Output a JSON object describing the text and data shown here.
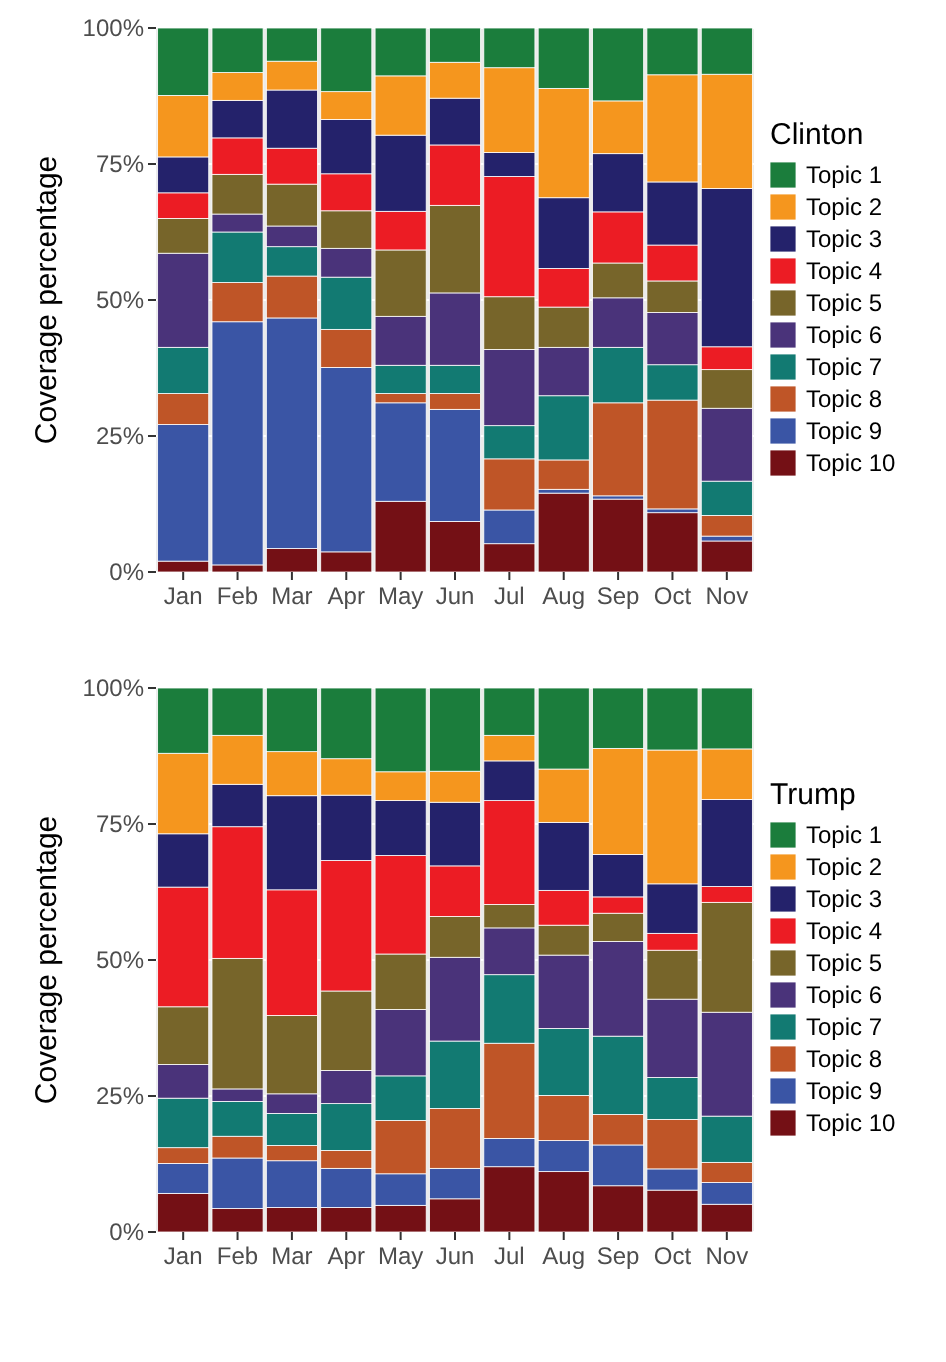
{
  "chart_data": [
    {
      "type": "bar",
      "stacked": true,
      "ylabel": "Coverage percentage",
      "legend_title": "Clinton",
      "legend": "right",
      "grid": true,
      "categories": [
        "Jan",
        "Feb",
        "Mar",
        "Apr",
        "May",
        "Jun",
        "Jul",
        "Aug",
        "Sep",
        "Oct",
        "Nov"
      ],
      "ylim": [
        0,
        100
      ],
      "yticks": [
        {
          "value": 0,
          "label": "0%"
        },
        {
          "value": 25,
          "label": "25%"
        },
        {
          "value": 50,
          "label": "50%"
        },
        {
          "value": 75,
          "label": "75%"
        },
        {
          "value": 100,
          "label": "100%"
        }
      ],
      "series": [
        {
          "name": "Topic 10",
          "color": "#741015",
          "values": [
            2.0,
            1.3,
            4.3,
            3.7,
            13.0,
            9.3,
            5.2,
            14.5,
            13.4,
            10.9,
            5.7
          ]
        },
        {
          "name": "Topic 9",
          "color": "#3a55a5",
          "values": [
            25.1,
            44.7,
            42.4,
            33.9,
            18.1,
            20.6,
            6.2,
            0.7,
            0.6,
            0.7,
            0.9
          ]
        },
        {
          "name": "Topic 8",
          "color": "#bf5527",
          "values": [
            5.7,
            7.2,
            7.7,
            7.0,
            1.7,
            2.9,
            9.4,
            5.4,
            17.1,
            20.0,
            3.8
          ]
        },
        {
          "name": "Topic 7",
          "color": "#127a72",
          "values": [
            8.5,
            9.3,
            5.4,
            9.6,
            5.2,
            5.2,
            6.1,
            11.8,
            10.2,
            6.5,
            6.3
          ]
        },
        {
          "name": "Topic 6",
          "color": "#4a337a",
          "values": [
            17.3,
            3.3,
            3.8,
            5.3,
            9.0,
            13.3,
            14.0,
            8.9,
            9.1,
            9.6,
            13.4
          ]
        },
        {
          "name": "Topic 5",
          "color": "#77652a",
          "values": [
            6.4,
            7.3,
            7.7,
            6.9,
            12.2,
            16.1,
            9.7,
            7.4,
            6.4,
            5.8,
            7.1
          ]
        },
        {
          "name": "Topic 4",
          "color": "#ec1c24",
          "values": [
            4.7,
            6.7,
            6.6,
            6.8,
            7.1,
            11.1,
            22.1,
            7.1,
            9.4,
            6.6,
            4.2
          ]
        },
        {
          "name": "Topic 3",
          "color": "#24226b",
          "values": [
            6.6,
            6.9,
            10.7,
            10.0,
            14.0,
            8.6,
            4.4,
            13.0,
            10.7,
            11.6,
            29.1
          ]
        },
        {
          "name": "Topic 2",
          "color": "#f5961e",
          "values": [
            11.3,
            5.1,
            5.3,
            5.1,
            10.9,
            6.6,
            15.6,
            20.1,
            9.7,
            19.7,
            21.0
          ]
        },
        {
          "name": "Topic 1",
          "color": "#1b7d3c",
          "values": [
            12.4,
            8.2,
            6.1,
            11.7,
            8.8,
            6.3,
            7.3,
            11.1,
            13.4,
            8.6,
            8.5
          ]
        }
      ]
    },
    {
      "type": "bar",
      "stacked": true,
      "ylabel": "Coverage percentage",
      "legend_title": "Trump",
      "legend": "right",
      "grid": true,
      "categories": [
        "Jan",
        "Feb",
        "Mar",
        "Apr",
        "May",
        "Jun",
        "Jul",
        "Aug",
        "Sep",
        "Oct",
        "Nov"
      ],
      "ylim": [
        0,
        100
      ],
      "yticks": [
        {
          "value": 0,
          "label": "0%"
        },
        {
          "value": 25,
          "label": "25%"
        },
        {
          "value": 50,
          "label": "50%"
        },
        {
          "value": 75,
          "label": "75%"
        },
        {
          "value": 100,
          "label": "100%"
        }
      ],
      "series": [
        {
          "name": "Topic 10",
          "color": "#741015",
          "values": [
            7.1,
            4.3,
            4.5,
            4.5,
            4.9,
            6.1,
            12.0,
            11.1,
            8.5,
            7.7,
            5.1
          ]
        },
        {
          "name": "Topic 9",
          "color": "#3a55a5",
          "values": [
            5.5,
            9.3,
            8.6,
            7.2,
            5.8,
            5.6,
            5.2,
            5.7,
            7.5,
            3.9,
            4.0
          ]
        },
        {
          "name": "Topic 8",
          "color": "#bf5527",
          "values": [
            2.9,
            4.0,
            2.8,
            3.3,
            9.8,
            11.0,
            17.5,
            8.3,
            5.6,
            9.1,
            3.7
          ]
        },
        {
          "name": "Topic 7",
          "color": "#127a72",
          "values": [
            9.1,
            6.4,
            5.9,
            8.6,
            8.2,
            12.4,
            12.6,
            12.3,
            14.4,
            7.7,
            8.5
          ]
        },
        {
          "name": "Topic 6",
          "color": "#4a337a",
          "values": [
            6.2,
            2.3,
            3.6,
            6.1,
            12.2,
            15.4,
            8.6,
            13.5,
            17.4,
            14.4,
            19.1
          ]
        },
        {
          "name": "Topic 5",
          "color": "#77652a",
          "values": [
            10.6,
            24.0,
            14.4,
            14.6,
            10.2,
            7.5,
            4.3,
            5.5,
            5.2,
            9.0,
            20.2
          ]
        },
        {
          "name": "Topic 4",
          "color": "#ec1c24",
          "values": [
            22.0,
            24.2,
            23.1,
            24.0,
            18.1,
            9.3,
            19.1,
            6.4,
            3.0,
            3.1,
            2.9
          ]
        },
        {
          "name": "Topic 3",
          "color": "#24226b",
          "values": [
            9.8,
            7.8,
            17.3,
            12.0,
            10.1,
            11.7,
            7.3,
            12.5,
            7.8,
            9.1,
            16.0
          ]
        },
        {
          "name": "Topic 2",
          "color": "#f5961e",
          "values": [
            14.8,
            9.0,
            8.1,
            6.7,
            5.3,
            5.7,
            4.7,
            9.8,
            19.5,
            24.6,
            9.3
          ]
        },
        {
          "name": "Topic 1",
          "color": "#1b7d3c",
          "values": [
            12.0,
            8.7,
            11.7,
            13.0,
            15.4,
            15.3,
            8.7,
            14.9,
            11.1,
            11.4,
            11.2
          ]
        }
      ]
    }
  ]
}
